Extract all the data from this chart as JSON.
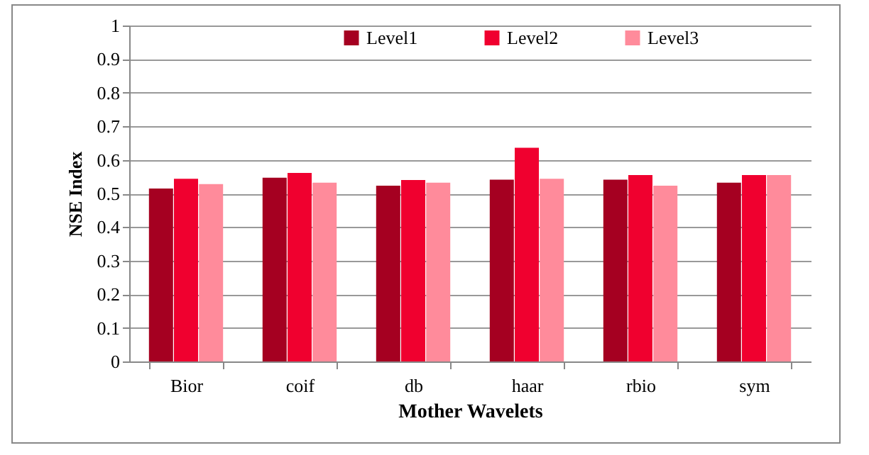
{
  "chart_data": {
    "type": "bar",
    "xlabel": "Mother Wavelets",
    "ylabel": "NSE Index",
    "categories": [
      "Bior",
      "coif",
      "db",
      "haar",
      "rbio",
      "sym"
    ],
    "series": [
      {
        "name": "Level1",
        "color": "#a50021",
        "values": [
          0.515,
          0.547,
          0.523,
          0.541,
          0.541,
          0.532
        ]
      },
      {
        "name": "Level2",
        "color": "#f0002f",
        "values": [
          0.544,
          0.561,
          0.54,
          0.636,
          0.555,
          0.555
        ]
      },
      {
        "name": "Level3",
        "color": "#ff8b9b",
        "values": [
          0.528,
          0.532,
          0.532,
          0.544,
          0.523,
          0.555
        ]
      }
    ],
    "ylim": [
      0,
      1
    ],
    "yticks": [
      0,
      0.1,
      0.2,
      0.3,
      0.4,
      0.5,
      0.6,
      0.7,
      0.8,
      0.9,
      1
    ],
    "grid": "y",
    "legend": "top"
  }
}
